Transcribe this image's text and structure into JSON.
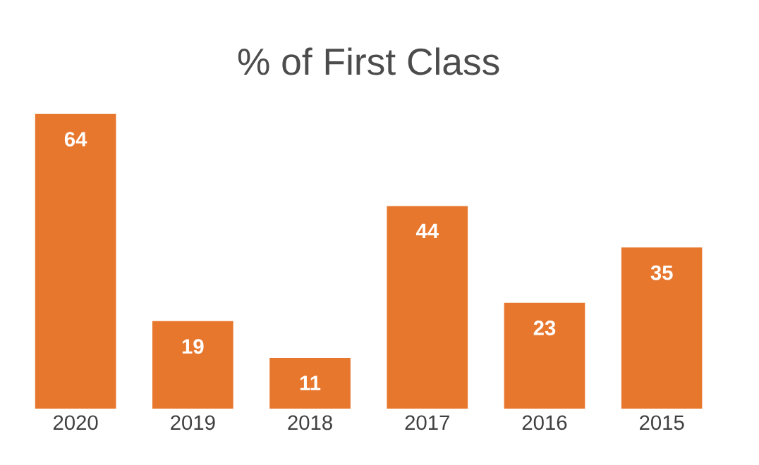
{
  "chart_data": {
    "type": "bar",
    "title": "% of First Class",
    "categories": [
      "2020",
      "2019",
      "2018",
      "2017",
      "2016",
      "2015"
    ],
    "values": [
      64,
      19,
      11,
      44,
      23,
      35
    ],
    "color": "#e8772e",
    "data_labels": true
  }
}
